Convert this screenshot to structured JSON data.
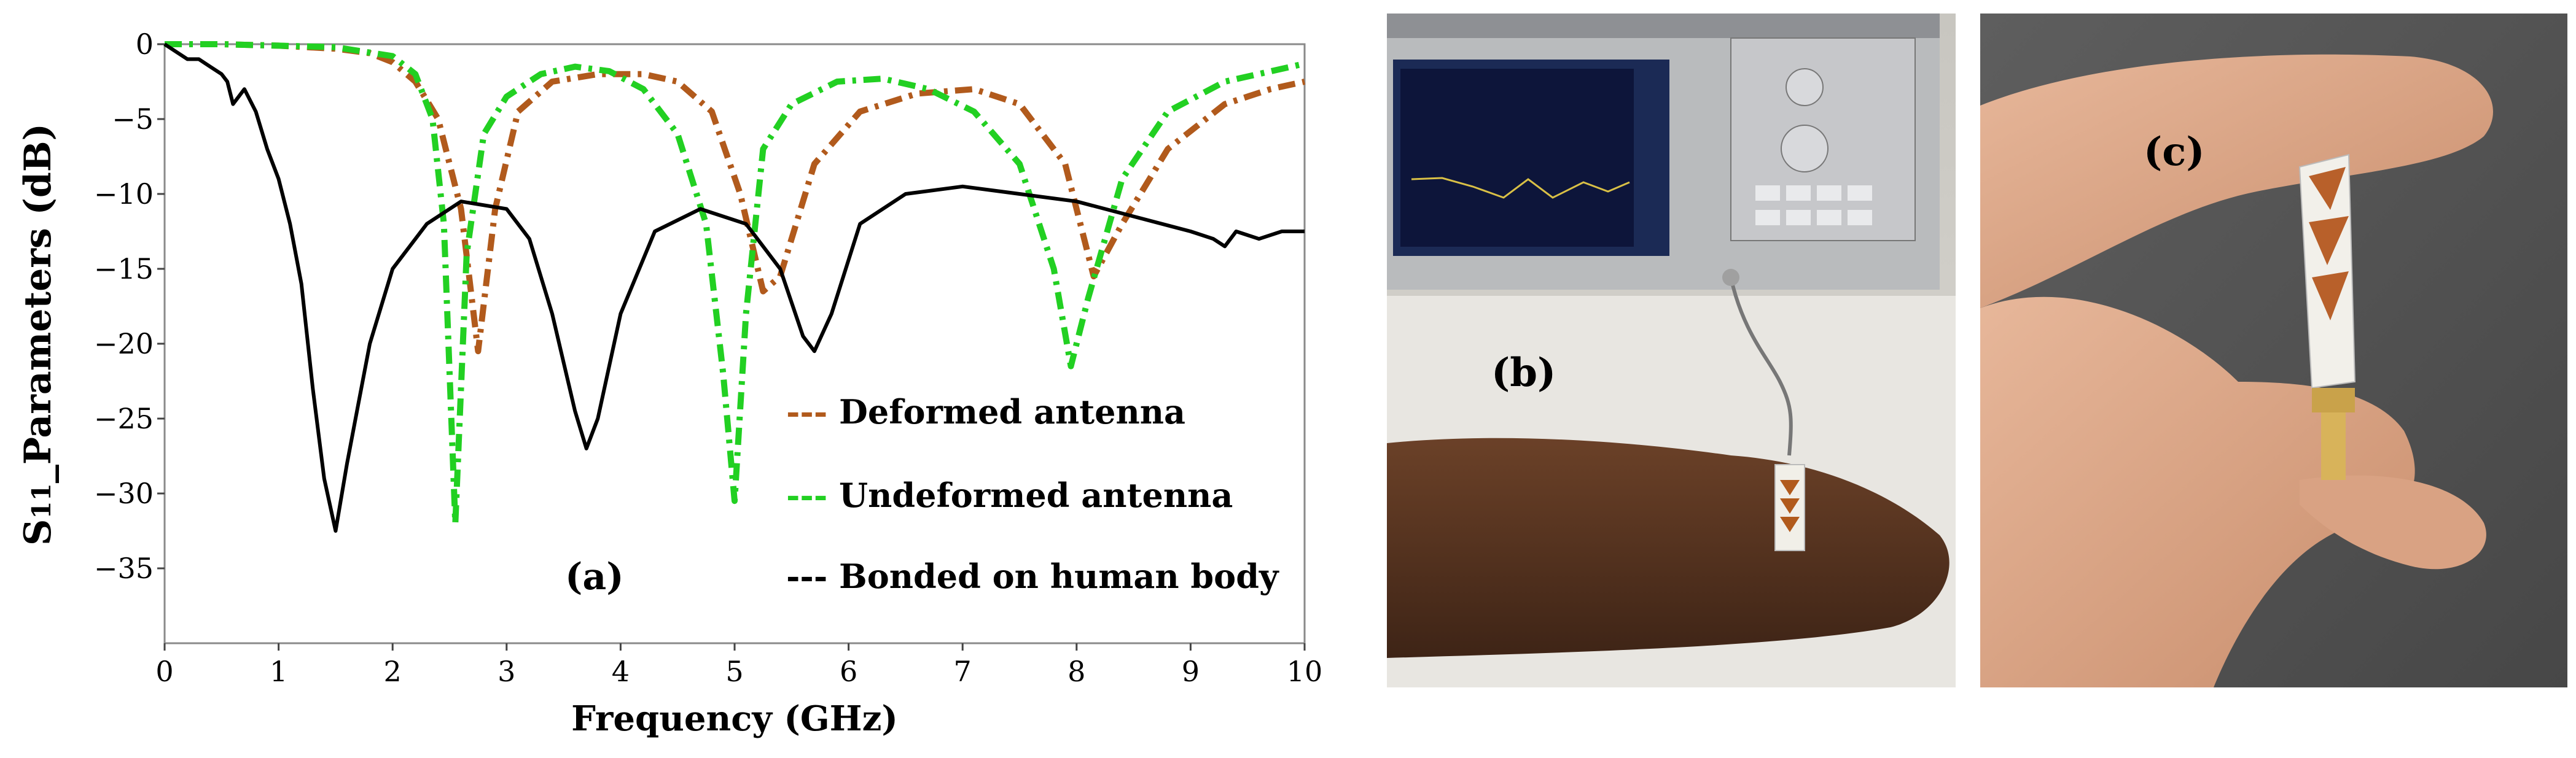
{
  "chart_data": {
    "type": "line",
    "panel_label": "(a)",
    "title": "",
    "xlabel": "Frequency (GHz)",
    "ylabel": "S11_Parameters (dB)",
    "ylabel_parts": {
      "s": "S",
      "sub": "11",
      "rest": "_Parameters (dB)"
    },
    "xlim": [
      0,
      10
    ],
    "ylim": [
      -40,
      0
    ],
    "x_ticks": [
      0,
      1,
      2,
      3,
      4,
      5,
      6,
      7,
      8,
      9,
      10
    ],
    "x_tick_labels": [
      "0",
      "1",
      "2",
      "3",
      "4",
      "5",
      "6",
      "7",
      "8",
      "9",
      "10"
    ],
    "y_ticks": [
      0,
      -5,
      -10,
      -15,
      -20,
      -25,
      -30,
      -35
    ],
    "y_tick_labels": [
      "0",
      "−5",
      "−10",
      "−15",
      "−20",
      "−25",
      "−30",
      "−35"
    ],
    "grid": false,
    "legend_position": "lower-right",
    "series": [
      {
        "name": "Deformed antenna",
        "legend_label": "--- Deformed antenna",
        "color": "#b15a1c",
        "dash": "dash-dot",
        "x": [
          0,
          0.5,
          1.0,
          1.5,
          1.8,
          2.0,
          2.2,
          2.4,
          2.6,
          2.75,
          2.9,
          3.1,
          3.4,
          3.8,
          4.2,
          4.5,
          4.8,
          5.05,
          5.25,
          5.4,
          5.7,
          6.1,
          6.6,
          7.1,
          7.5,
          7.9,
          8.15,
          8.4,
          8.8,
          9.3,
          9.7,
          10
        ],
        "y": [
          0,
          0,
          -0.1,
          -0.3,
          -0.6,
          -1.2,
          -2.5,
          -5,
          -11,
          -20.5,
          -11,
          -4.5,
          -2.5,
          -2,
          -2,
          -2.5,
          -4.5,
          -10,
          -16.5,
          -15.5,
          -8,
          -4.5,
          -3.3,
          -3,
          -4,
          -8,
          -15.5,
          -12,
          -7,
          -4,
          -3,
          -2.5
        ]
      },
      {
        "name": "Undeformed antenna",
        "legend_label": "--- Undeformed antenna",
        "color": "#22d022",
        "dash": "dash-dot",
        "x": [
          0,
          0.5,
          1.0,
          1.5,
          2.0,
          2.2,
          2.35,
          2.45,
          2.55,
          2.65,
          2.8,
          3.0,
          3.3,
          3.6,
          3.9,
          4.2,
          4.5,
          4.75,
          4.9,
          5.0,
          5.1,
          5.25,
          5.5,
          5.9,
          6.3,
          6.7,
          7.1,
          7.5,
          7.8,
          7.95,
          8.1,
          8.4,
          8.8,
          9.3,
          10
        ],
        "y": [
          0,
          0,
          -0.1,
          -0.2,
          -0.8,
          -2,
          -5,
          -12,
          -32,
          -14,
          -6,
          -3.5,
          -2,
          -1.5,
          -1.8,
          -3,
          -6,
          -12,
          -22,
          -30.5,
          -18,
          -7,
          -4,
          -2.5,
          -2.3,
          -3,
          -4.5,
          -8,
          -15,
          -21.5,
          -17,
          -9,
          -4.5,
          -2.5,
          -1.3
        ]
      },
      {
        "name": "Bonded on human body",
        "legend_label": "--- Bonded on human body",
        "color": "#000000",
        "dash": "solid",
        "x": [
          0,
          0.1,
          0.2,
          0.3,
          0.4,
          0.5,
          0.55,
          0.6,
          0.65,
          0.7,
          0.8,
          0.9,
          1.0,
          1.1,
          1.2,
          1.3,
          1.4,
          1.5,
          1.6,
          1.7,
          1.8,
          2.0,
          2.3,
          2.6,
          3.0,
          3.2,
          3.4,
          3.6,
          3.7,
          3.8,
          4.0,
          4.3,
          4.7,
          5.1,
          5.4,
          5.6,
          5.7,
          5.85,
          6.1,
          6.5,
          7.0,
          7.5,
          8.0,
          8.5,
          9.0,
          9.2,
          9.3,
          9.4,
          9.6,
          9.8,
          10
        ],
        "y": [
          0,
          -0.5,
          -1,
          -1,
          -1.5,
          -2,
          -2.5,
          -4,
          -3.5,
          -3,
          -4.5,
          -7,
          -9,
          -12,
          -16,
          -23,
          -29,
          -32.5,
          -28,
          -24,
          -20,
          -15,
          -12,
          -10.5,
          -11,
          -13,
          -18,
          -24.5,
          -27,
          -25,
          -18,
          -12.5,
          -11,
          -12,
          -15,
          -19.5,
          -20.5,
          -18,
          -12,
          -10,
          -9.5,
          -10,
          -10.5,
          -11.5,
          -12.5,
          -13,
          -13.5,
          -12.5,
          -13,
          -12.5,
          -12.5
        ]
      }
    ]
  },
  "photo_labels": {
    "b": "(b)",
    "c": "(c)"
  }
}
